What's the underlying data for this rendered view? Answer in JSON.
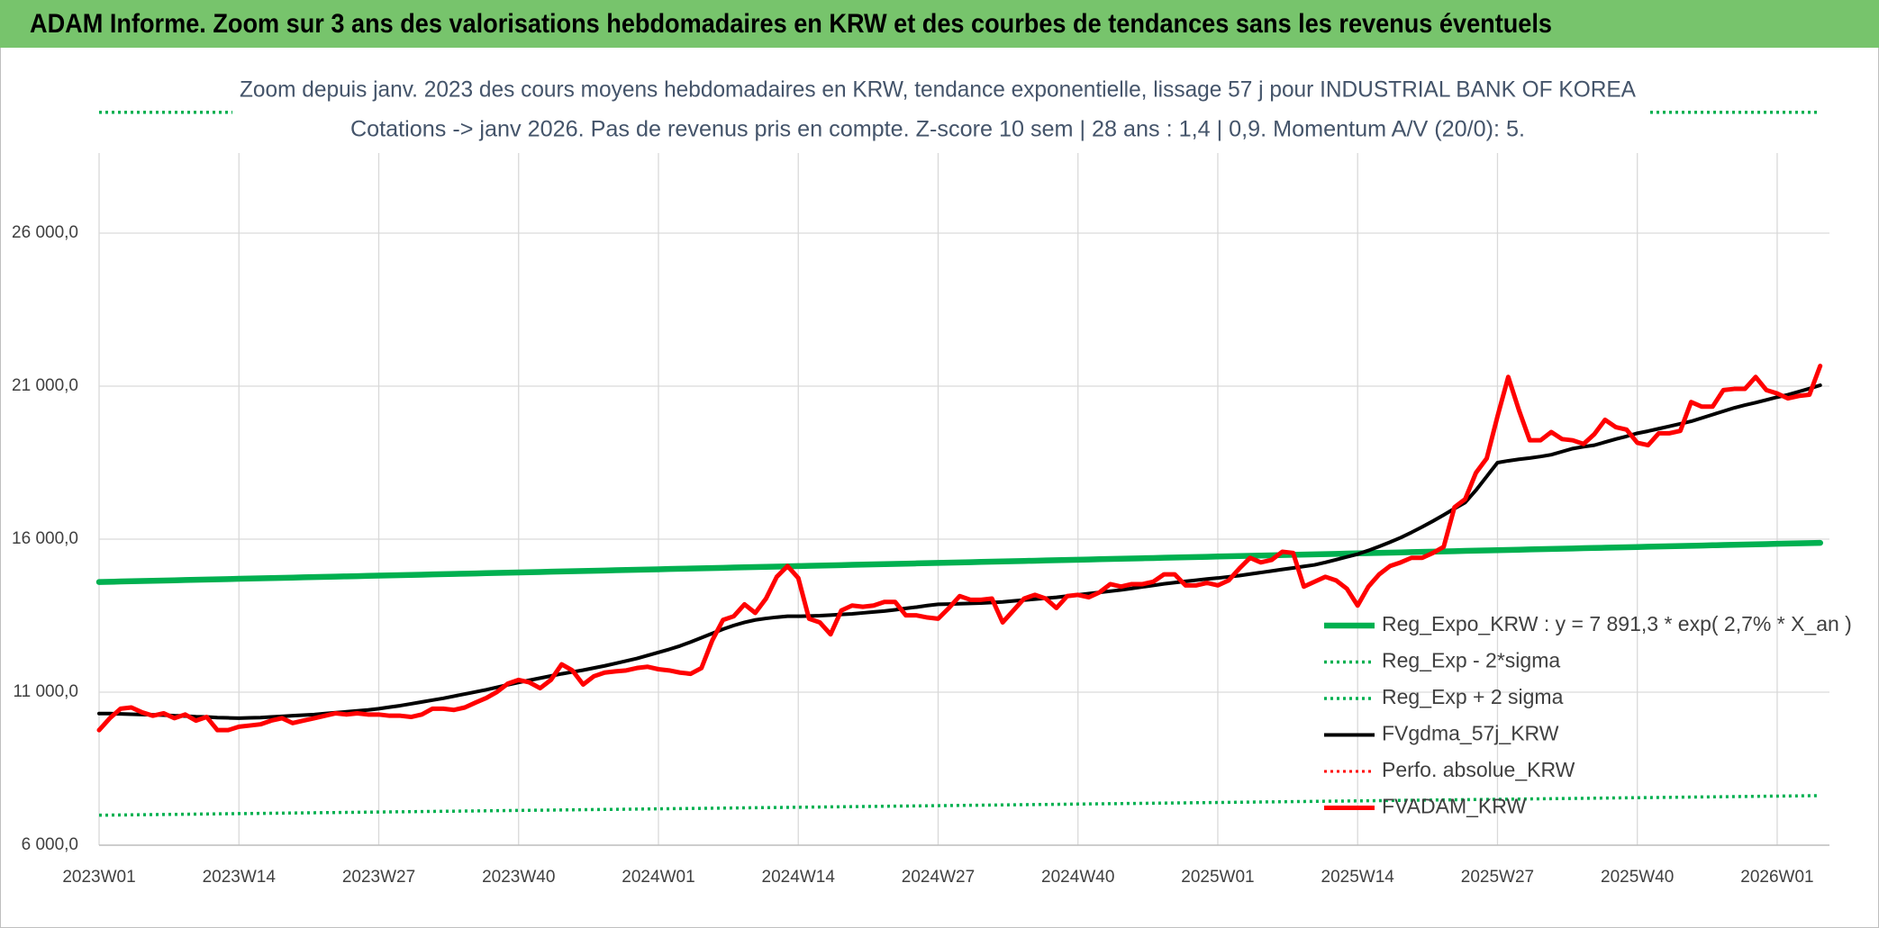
{
  "chart_data": {
    "type": "line",
    "title": "ADAM Informe. Zoom sur 3 ans des valorisations hebdomadaires en KRW et des courbes de tendances sans les revenus éventuels",
    "subtitle": [
      "Zoom depuis janv. 2023 des cours moyens hebdomadaires en KRW, tendance exponentielle, lissage 57 j pour INDUSTRIAL BANK OF KOREA",
      "Cotations -> janv 2026. Pas de revenus pris en compte. Z-score 10 sem | 28 ans : 1,4 | 0,9. Momentum A/V (20/0): 5."
    ],
    "categories": [
      "2023W01",
      null,
      null,
      null,
      null,
      null,
      null,
      null,
      null,
      null,
      null,
      null,
      null,
      "2023W14",
      null,
      null,
      null,
      null,
      null,
      null,
      null,
      null,
      null,
      null,
      null,
      null,
      "2023W27",
      null,
      null,
      null,
      null,
      null,
      null,
      null,
      null,
      null,
      null,
      null,
      null,
      "2023W40",
      null,
      null,
      null,
      null,
      null,
      null,
      null,
      null,
      null,
      null,
      null,
      null,
      "2024W01",
      null,
      null,
      null,
      null,
      null,
      null,
      null,
      null,
      null,
      null,
      null,
      null,
      "2024W14",
      null,
      null,
      null,
      null,
      null,
      null,
      null,
      null,
      null,
      null,
      null,
      null,
      "2024W27",
      null,
      null,
      null,
      null,
      null,
      null,
      null,
      null,
      null,
      null,
      null,
      null,
      "2024W40",
      null,
      null,
      null,
      null,
      null,
      null,
      null,
      null,
      null,
      null,
      null,
      null,
      "2025W01",
      null,
      null,
      null,
      null,
      null,
      null,
      null,
      null,
      null,
      null,
      null,
      null,
      "2025W14",
      null,
      null,
      null,
      null,
      null,
      null,
      null,
      null,
      null,
      null,
      null,
      null,
      "2025W27",
      null,
      null,
      null,
      null,
      null,
      null,
      null,
      null,
      null,
      null,
      null,
      null,
      "2025W40",
      null,
      null,
      null,
      null,
      null,
      null,
      null,
      null,
      null,
      null,
      null,
      null,
      "2026W01",
      null,
      null,
      null,
      null
    ],
    "ylim": [
      6000,
      30000
    ],
    "yticks": [
      {
        "value": 6000,
        "label": "6 000,0"
      },
      {
        "value": 11000,
        "label": "11 000,0"
      },
      {
        "value": 16000,
        "label": "16 000,0"
      },
      {
        "value": 21000,
        "label": "21 000,0"
      },
      {
        "value": 26000,
        "label": "26 000,0"
      }
    ],
    "grid": true,
    "legend": "right",
    "series": [
      {
        "name": "Reg_Expo_KRW : y = 7 891,3 * exp( 2,7% *  X_an )",
        "color": "#00b050",
        "style": "solid",
        "values": [
          14600,
          14608,
          14616,
          14624,
          14632,
          14640,
          14648,
          14656,
          14664,
          14672,
          14680,
          14688,
          14696,
          14704,
          14712,
          14720,
          14728,
          14736,
          14744,
          14752,
          14760,
          14768,
          14776,
          14784,
          14792,
          14800,
          14808,
          14816,
          14824,
          14832,
          14840,
          14848,
          14856,
          14864,
          14872,
          14880,
          14888,
          14896,
          14904,
          14912,
          14920,
          14928,
          14936,
          14944,
          14952,
          14960,
          14968,
          14976,
          14984,
          14992,
          15000,
          15008,
          15016,
          15024,
          15032,
          15040,
          15048,
          15056,
          15064,
          15072,
          15080,
          15088,
          15096,
          15104,
          15112,
          15120,
          15128,
          15136,
          15144,
          15152,
          15160,
          15168,
          15176,
          15184,
          15192,
          15200,
          15208,
          15216,
          15224,
          15232,
          15240,
          15248,
          15256,
          15264,
          15272,
          15280,
          15288,
          15296,
          15304,
          15312,
          15320,
          15328,
          15336,
          15344,
          15352,
          15360,
          15368,
          15376,
          15384,
          15392,
          15400,
          15408,
          15416,
          15424,
          15432,
          15440,
          15448,
          15456,
          15464,
          15472,
          15480,
          15488,
          15496,
          15504,
          15512,
          15520,
          15528,
          15536,
          15544,
          15552,
          15560,
          15568,
          15576,
          15584,
          15592,
          15600,
          15608,
          15616,
          15624,
          15632,
          15640,
          15648,
          15656,
          15664,
          15672,
          15680,
          15688,
          15696,
          15704,
          15712,
          15720,
          15728,
          15736,
          15744,
          15752,
          15760,
          15768,
          15776,
          15784,
          15792,
          15800,
          15808,
          15816,
          15824,
          15832,
          15840,
          15848,
          15856,
          15864,
          15872,
          15880
        ]
      },
      {
        "name": "Reg_Exp - 2*sigma",
        "color": "#00b050",
        "style": "dotted",
        "values": [
          6980,
          6984,
          6988,
          6992,
          6996,
          7000,
          7004,
          7008,
          7012,
          7016,
          7020,
          7024,
          7028,
          7032,
          7036,
          7040,
          7044,
          7048,
          7052,
          7056,
          7060,
          7064,
          7068,
          7072,
          7076,
          7080,
          7084,
          7088,
          7092,
          7096,
          7100,
          7104,
          7108,
          7112,
          7116,
          7120,
          7124,
          7128,
          7132,
          7136,
          7140,
          7144,
          7148,
          7152,
          7156,
          7160,
          7164,
          7168,
          7172,
          7176,
          7180,
          7184,
          7188,
          7192,
          7196,
          7200,
          7204,
          7208,
          7212,
          7216,
          7220,
          7224,
          7228,
          7232,
          7236,
          7240,
          7244,
          7248,
          7252,
          7256,
          7260,
          7264,
          7268,
          7272,
          7276,
          7280,
          7284,
          7288,
          7292,
          7296,
          7300,
          7304,
          7308,
          7312,
          7316,
          7320,
          7324,
          7328,
          7332,
          7336,
          7340,
          7344,
          7348,
          7352,
          7356,
          7360,
          7364,
          7368,
          7372,
          7376,
          7380,
          7384,
          7388,
          7392,
          7396,
          7400,
          7404,
          7408,
          7412,
          7416,
          7420,
          7424,
          7428,
          7432,
          7436,
          7440,
          7444,
          7448,
          7452,
          7456,
          7460,
          7464,
          7468,
          7472,
          7476,
          7480,
          7484,
          7488,
          7492,
          7496,
          7500,
          7504,
          7508,
          7512,
          7516,
          7520,
          7524,
          7528,
          7532,
          7536,
          7540,
          7544,
          7548,
          7552,
          7556,
          7560,
          7564,
          7568,
          7572,
          7576,
          7580,
          7584,
          7588,
          7592,
          7596,
          7600,
          7604,
          7608,
          7612,
          7616,
          7620
        ]
      },
      {
        "name": "Reg_Exp + 2 sigma",
        "color": "#00b050",
        "style": "dotted",
        "values": [
          29950,
          29950,
          29950,
          29950,
          29950,
          29950,
          29950,
          29950,
          29950,
          29950,
          29950,
          29950,
          29950,
          29950,
          29950,
          29950,
          29950,
          29950,
          29950,
          29950,
          29950,
          29950,
          29950,
          29950,
          29950,
          29950,
          29950,
          29950,
          29950,
          29950,
          29950,
          29950,
          29950,
          29950,
          29950,
          29950,
          29950,
          29950,
          29950,
          29950,
          29950,
          29950,
          29950,
          29950,
          29950,
          29950,
          29950,
          29950,
          29950,
          29950,
          29950,
          29950,
          29950,
          29950,
          29950,
          29950,
          29950,
          29950,
          29950,
          29950,
          29950,
          29950,
          29950,
          29950,
          29950,
          29950,
          29950,
          29950,
          29950,
          29950,
          29950,
          29950,
          29950,
          29950,
          29950,
          29950,
          29950,
          29950,
          29950,
          29950,
          29950,
          29950,
          29950,
          29950,
          29950,
          29950,
          29950,
          29950,
          29950,
          29950,
          29950,
          29950,
          29950,
          29950,
          29950,
          29950,
          29950,
          29950,
          29950,
          29950,
          29950,
          29950,
          29950,
          29950,
          29950,
          29950,
          29950,
          29950,
          29950,
          29950,
          29950,
          29950,
          29950,
          29950,
          29950,
          29950,
          29950,
          29950,
          29950,
          29950,
          29950,
          29950,
          29950,
          29950,
          29950,
          29950,
          29950,
          29950,
          29950,
          29950,
          29950,
          29950,
          29950,
          29950,
          29950,
          29950,
          29950,
          29950,
          29950,
          29950,
          29950,
          29950,
          29950,
          29950,
          29950,
          29950,
          29950,
          29950,
          29950,
          29950,
          29950,
          29950,
          29950,
          29950,
          29950,
          29950,
          29950,
          29950,
          29950,
          29950,
          29950
        ]
      },
      {
        "name": "FVgdma_57j_KRW",
        "color": "#000000",
        "style": "solid",
        "values": [
          10300,
          10300,
          10290,
          10280,
          10270,
          10260,
          10250,
          10230,
          10220,
          10200,
          10190,
          10170,
          10160,
          10150,
          10160,
          10170,
          10190,
          10210,
          10230,
          10250,
          10270,
          10300,
          10330,
          10360,
          10390,
          10420,
          10460,
          10510,
          10560,
          10620,
          10680,
          10740,
          10800,
          10870,
          10940,
          11010,
          11080,
          11160,
          11240,
          11320,
          11390,
          11460,
          11530,
          11600,
          11660,
          11720,
          11790,
          11860,
          11940,
          12020,
          12100,
          12200,
          12300,
          12400,
          12510,
          12640,
          12780,
          12920,
          13060,
          13180,
          13280,
          13360,
          13410,
          13450,
          13480,
          13480,
          13490,
          13500,
          13520,
          13540,
          13560,
          13590,
          13620,
          13650,
          13690,
          13740,
          13780,
          13830,
          13870,
          13880,
          13890,
          13900,
          13910,
          13930,
          13950,
          13980,
          14010,
          14040,
          14070,
          14100,
          14140,
          14180,
          14220,
          14260,
          14300,
          14340,
          14390,
          14440,
          14490,
          14540,
          14580,
          14620,
          14660,
          14700,
          14730,
          14770,
          14810,
          14860,
          14910,
          14960,
          15010,
          15060,
          15110,
          15160,
          15240,
          15330,
          15420,
          15510,
          15630,
          15760,
          15900,
          16050,
          16220,
          16400,
          16590,
          16790,
          17000,
          17200,
          17600,
          18050,
          18500,
          18560,
          18610,
          18650,
          18700,
          18760,
          18860,
          18960,
          19020,
          19070,
          19170,
          19270,
          19360,
          19460,
          19530,
          19610,
          19690,
          19770,
          19850,
          19960,
          20070,
          20180,
          20290,
          20380,
          20460,
          20550,
          20640,
          20720,
          20820,
          20920,
          21030
        ]
      },
      {
        "name": "Perfo. absolue_KRW",
        "color": "#ff0000",
        "style": "dotted"
      },
      {
        "name": "FVADAM_KRW",
        "color": "#ff0000",
        "style": "solid",
        "values": [
          9760,
          10150,
          10460,
          10500,
          10340,
          10230,
          10310,
          10150,
          10270,
          10070,
          10190,
          9760,
          9760,
          9870,
          9910,
          9950,
          10070,
          10150,
          9990,
          10070,
          10150,
          10230,
          10310,
          10270,
          10310,
          10270,
          10270,
          10230,
          10230,
          10190,
          10270,
          10460,
          10460,
          10420,
          10500,
          10660,
          10810,
          11010,
          11280,
          11400,
          11320,
          11130,
          11400,
          11910,
          11710,
          11250,
          11520,
          11640,
          11680,
          11710,
          11790,
          11830,
          11750,
          11710,
          11640,
          11600,
          11790,
          12690,
          13360,
          13480,
          13870,
          13590,
          14060,
          14770,
          15120,
          14730,
          13400,
          13280,
          12890,
          13670,
          13830,
          13790,
          13830,
          13950,
          13950,
          13510,
          13510,
          13440,
          13400,
          13750,
          14140,
          14020,
          14020,
          14060,
          13280,
          13670,
          14060,
          14180,
          14060,
          13750,
          14140,
          14180,
          14100,
          14260,
          14530,
          14450,
          14530,
          14530,
          14610,
          14850,
          14850,
          14490,
          14490,
          14570,
          14490,
          14650,
          15040,
          15390,
          15240,
          15320,
          15590,
          15550,
          14450,
          14610,
          14770,
          14650,
          14380,
          13830,
          14450,
          14850,
          15120,
          15240,
          15390,
          15390,
          15550,
          15750,
          17040,
          17310,
          18170,
          18640,
          20010,
          21300,
          20210,
          19230,
          19230,
          19500,
          19270,
          19230,
          19110,
          19430,
          19900,
          19660,
          19580,
          19150,
          19070,
          19460,
          19460,
          19540,
          20480,
          20330,
          20330,
          20870,
          20910,
          20910,
          21300,
          20870,
          20760,
          20600,
          20680,
          20720,
          21660
        ]
      }
    ]
  }
}
